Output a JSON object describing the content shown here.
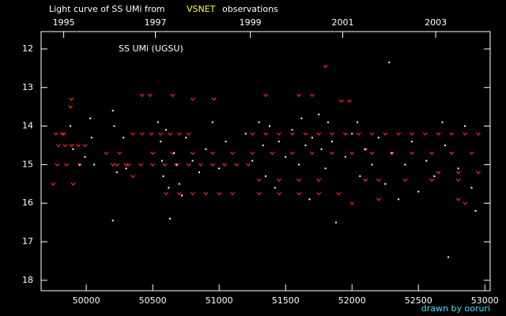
{
  "chart_data": {
    "type": "scatter",
    "title": "Light curve of SS UMi from",
    "title_source": "VSNET",
    "title_suffix": "observations",
    "annotation": "SS UMi (UGSU)",
    "credit": "drawn by ooruri",
    "xlim": [
      49660,
      53040
    ],
    "ylim": [
      11.55,
      18.27
    ],
    "y_inverted": true,
    "xticks": [
      50000,
      50500,
      51000,
      51500,
      52000,
      52500,
      53000
    ],
    "yticks": [
      12,
      13,
      14,
      15,
      16,
      17,
      18
    ],
    "x2ticks": [
      {
        "value": 49830,
        "label": "1995"
      },
      {
        "value": 50520,
        "label": "1997"
      },
      {
        "value": 51235,
        "label": "1999"
      },
      {
        "value": 51930,
        "label": "2001"
      },
      {
        "value": 52630,
        "label": "2003"
      }
    ],
    "series": [
      {
        "color": "#ff2020",
        "marker": "v",
        "x": [
          49790,
          49840,
          49890,
          49940,
          49990,
          49750,
          49900,
          49820,
          49887,
          49880,
          49770,
          49830,
          49780,
          49850,
          49950,
          50150,
          50250,
          50200,
          50300,
          50350,
          50350,
          50420,
          50490,
          50560,
          50630,
          50700,
          50770,
          50420,
          50480,
          50650,
          50800,
          50960,
          50230,
          50320,
          50410,
          50500,
          50590,
          50680,
          50770,
          50860,
          50950,
          51040,
          51130,
          51220,
          50500,
          50650,
          50800,
          50950,
          51100,
          51250,
          51400,
          51550,
          51700,
          51850,
          52000,
          52150,
          52300,
          52450,
          52600,
          52750,
          52900,
          50600,
          50700,
          50800,
          50900,
          51000,
          51100,
          51300,
          51450,
          51600,
          51750,
          51900,
          51250,
          51350,
          51450,
          51550,
          51650,
          51750,
          51850,
          51950,
          52050,
          52150,
          52250,
          52350,
          52450,
          52550,
          52650,
          52750,
          52850,
          52950,
          51300,
          51450,
          51600,
          51750,
          52100,
          52200,
          52400,
          52600,
          52800,
          52650,
          52800,
          52950,
          51800,
          51920,
          51980,
          51600,
          52100,
          52000,
          52200,
          52800,
          52850,
          51350,
          51700
        ],
        "values": [
          14.5,
          14.5,
          14.5,
          14.5,
          14.5,
          15.5,
          15.5,
          14.2,
          13.3,
          13.5,
          14.2,
          14.2,
          15.0,
          15.0,
          15.0,
          14.7,
          14.7,
          15.0,
          15.0,
          15.3,
          14.2,
          14.2,
          14.2,
          14.2,
          14.2,
          14.2,
          14.2,
          13.2,
          13.2,
          13.2,
          13.3,
          13.3,
          15.0,
          15.0,
          15.0,
          15.0,
          15.0,
          15.0,
          15.0,
          15.0,
          15.0,
          15.0,
          15.0,
          15.0,
          14.7,
          14.7,
          14.7,
          14.7,
          14.7,
          14.7,
          14.7,
          14.7,
          14.7,
          14.7,
          14.7,
          14.7,
          14.7,
          14.7,
          14.7,
          14.7,
          14.7,
          15.75,
          15.75,
          15.75,
          15.75,
          15.75,
          15.75,
          15.75,
          15.75,
          15.75,
          15.75,
          15.75,
          14.2,
          14.2,
          14.2,
          14.2,
          14.2,
          14.2,
          14.2,
          14.2,
          14.2,
          14.2,
          14.2,
          14.2,
          14.2,
          14.2,
          14.2,
          14.2,
          14.2,
          14.2,
          15.4,
          15.4,
          15.4,
          15.4,
          15.4,
          15.4,
          15.4,
          15.4,
          15.4,
          15.2,
          15.2,
          15.2,
          12.45,
          13.35,
          13.35,
          13.2,
          14.6,
          16.0,
          15.9,
          15.9,
          16.0,
          13.2,
          13.2
        ]
      },
      {
        "color": "#ffffff",
        "marker": "dot",
        "x": [
          49880,
          49900,
          49950,
          49990,
          50030,
          50040,
          50060,
          50200,
          50210,
          50230,
          50200,
          50280,
          50300,
          50540,
          50560,
          50570,
          50580,
          50600,
          50620,
          50630,
          50660,
          50680,
          50700,
          50720,
          50750,
          50800,
          50850,
          50900,
          50950,
          51000,
          51050,
          51200,
          51250,
          51300,
          51330,
          51350,
          51380,
          51420,
          51450,
          51500,
          51550,
          51600,
          51620,
          51650,
          51680,
          51700,
          51750,
          51770,
          51800,
          51820,
          51850,
          51880,
          51950,
          52000,
          52040,
          52060,
          52100,
          52150,
          52200,
          52250,
          52280,
          52300,
          52350,
          52400,
          52450,
          52500,
          52560,
          52620,
          52680,
          52700,
          52725,
          52800,
          52850,
          52900,
          52930
        ],
        "values": [
          14.0,
          14.6,
          15.0,
          14.8,
          13.8,
          14.3,
          15.0,
          13.6,
          14.0,
          15.2,
          16.45,
          14.3,
          15.1,
          13.9,
          14.4,
          14.9,
          15.3,
          14.1,
          15.6,
          16.4,
          14.7,
          15.0,
          15.5,
          15.8,
          14.3,
          14.9,
          15.2,
          14.6,
          13.9,
          15.1,
          14.4,
          14.2,
          14.9,
          13.9,
          14.5,
          15.3,
          14.0,
          15.6,
          14.4,
          14.8,
          14.1,
          15.0,
          13.8,
          14.5,
          15.9,
          14.3,
          13.7,
          14.6,
          15.1,
          13.9,
          14.4,
          16.5,
          14.8,
          14.2,
          13.9,
          15.3,
          14.6,
          15.0,
          14.3,
          15.5,
          12.35,
          14.7,
          15.9,
          15.0,
          14.4,
          15.7,
          14.9,
          15.3,
          13.9,
          14.5,
          17.4,
          15.1,
          14.0,
          15.6,
          16.2
        ]
      }
    ]
  }
}
